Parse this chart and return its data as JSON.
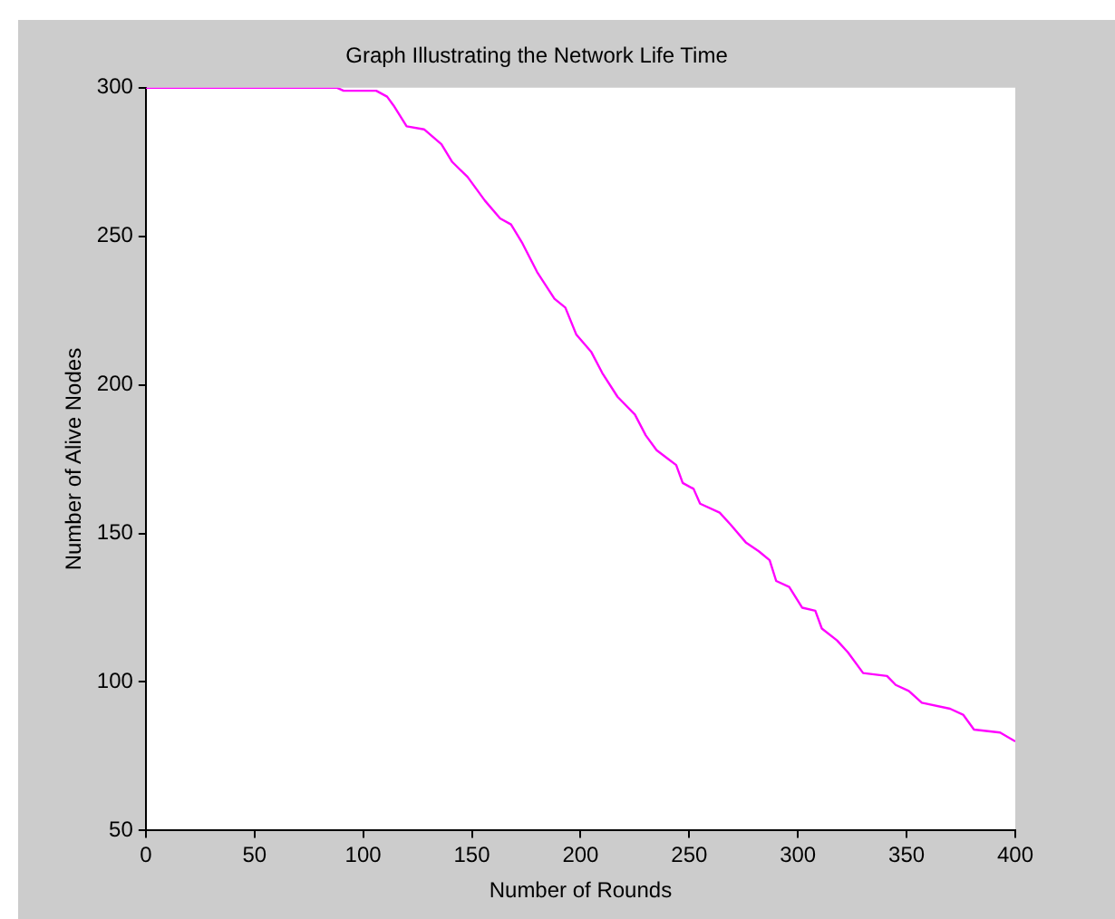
{
  "chart_data": {
    "type": "line",
    "title": "Graph Illustrating the Network Life Time",
    "xlabel": "Number of Rounds",
    "ylabel": "Number of Alive Nodes",
    "x": [
      0,
      88,
      91,
      106,
      111,
      114,
      120,
      128,
      136,
      141,
      148,
      156,
      163,
      168,
      173,
      180,
      188,
      193,
      198,
      205,
      210,
      217,
      225,
      230,
      235,
      244,
      247,
      252,
      255,
      264,
      269,
      276,
      282,
      287,
      290,
      296,
      302,
      308,
      311,
      318,
      323,
      330,
      341,
      345,
      351,
      357,
      370,
      376,
      381,
      393,
      400
    ],
    "series": [
      {
        "color": "#ff00ff",
        "values": [
          300,
          300,
          299,
          299,
          297,
          294,
          287,
          286,
          281,
          275,
          270,
          262,
          256,
          254,
          248,
          238,
          229,
          226,
          217,
          211,
          204,
          196,
          190,
          183,
          178,
          173,
          167,
          165,
          160,
          157,
          153,
          147,
          144,
          141,
          134,
          132,
          125,
          124,
          118,
          114,
          110,
          103,
          102,
          99,
          97,
          93,
          91,
          89,
          84,
          83,
          80
        ]
      }
    ],
    "xlim": [
      0,
      400
    ],
    "xticks": [
      0,
      50,
      100,
      150,
      200,
      250,
      300,
      350,
      400
    ],
    "ylim": [
      50,
      300
    ],
    "yticks": [
      50,
      100,
      150,
      200,
      250,
      300
    ],
    "grid": false,
    "legend": false,
    "marker": "none",
    "line_style": "solid"
  }
}
